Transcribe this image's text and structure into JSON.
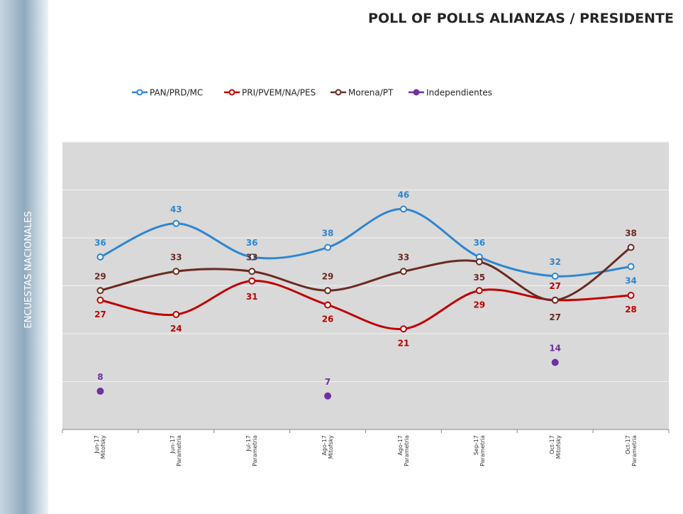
{
  "chart_data": {
    "type": "line",
    "title": "POLL OF POLLS ALIANZAS / PRESIDENTE",
    "ylabel": "ENCUESTAS NACIONALES",
    "categories": [
      "Jun-17\nMitofsky",
      "Jun-17\nParametria",
      "Jul-17\nParametria",
      "Ago-17\nMitofsky",
      "Ago-17\nParametria",
      "Sep-17\nParametria",
      "Oct-17\nMitofsky",
      "Oct-17\nParametria"
    ],
    "series": [
      {
        "name": "PAN/PRD/MC",
        "color": "#2e86cf",
        "values": [
          36,
          43,
          36,
          38,
          46,
          36,
          32,
          34
        ]
      },
      {
        "name": "PRI/PVEM/NA/PES",
        "color": "#c00000",
        "values": [
          27,
          24,
          31,
          26,
          21,
          29,
          27,
          28
        ]
      },
      {
        "name": "Morena/PT",
        "color": "#6b2a22",
        "values": [
          29,
          33,
          33,
          29,
          33,
          35,
          27,
          38
        ]
      },
      {
        "name": "Independientes",
        "color": "#7030a0",
        "values": [
          8,
          null,
          null,
          7,
          null,
          null,
          14,
          null
        ]
      }
    ],
    "ylim": [
      0,
      60
    ],
    "yticks": [
      0,
      10,
      20,
      30,
      40,
      50,
      60
    ],
    "grid": true,
    "legend": "top"
  }
}
